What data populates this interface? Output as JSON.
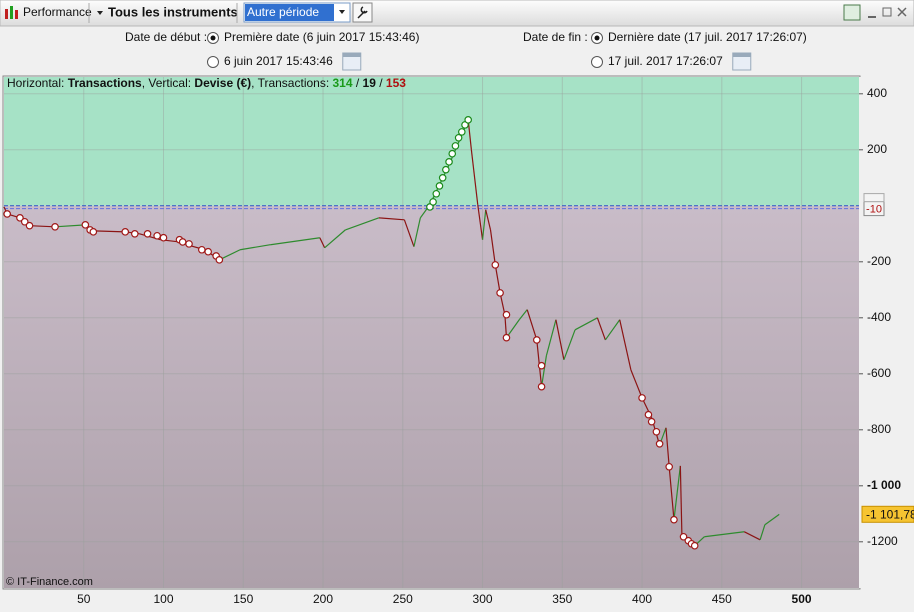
{
  "toolbar": {
    "module": "Performance",
    "instruments": "Tous les instruments",
    "period": "Autre période"
  },
  "dates": {
    "start": {
      "label": "Date de début :",
      "options": [
        {
          "label": "Première date (6 juin 2017 15:43:46)",
          "checked": true
        },
        {
          "label": "6 juin 2017 15:43:46",
          "checked": false
        }
      ]
    },
    "end": {
      "label": "Date de fin :",
      "options": [
        {
          "label": "Dernière date (17 juil. 2017 17:26:07)",
          "checked": true
        },
        {
          "label": "17 juil. 2017 17:26:07",
          "checked": false
        }
      ]
    }
  },
  "chart_data": {
    "type": "line",
    "header": {
      "horizontal": "Horizontal: ",
      "x_name": "Transactions",
      "vertical": ", Vertical: ",
      "y_name": "Devise (€)",
      "count_label": ", Transactions: ",
      "separator": " / ",
      "winning": 314,
      "neutral": 19,
      "losing": 153,
      "winning_color": "#1a9a1a",
      "losing_color": "#b01010"
    },
    "x": [
      0,
      2,
      10,
      16,
      32,
      51,
      54,
      76,
      85,
      98,
      110,
      117,
      126,
      135,
      148,
      167,
      198,
      201,
      214,
      235,
      251,
      257,
      261,
      267,
      279,
      291,
      293,
      297,
      300,
      302,
      305,
      308,
      311,
      314,
      315,
      323,
      328,
      334,
      337,
      340,
      346,
      351,
      358,
      372,
      377,
      386,
      393,
      400,
      406,
      411,
      415,
      417,
      420,
      424,
      425,
      433,
      439,
      464,
      474,
      477,
      486
    ],
    "values": [
      -4,
      -29,
      -43,
      -71,
      -75,
      -68,
      -89,
      -93,
      -100,
      -121,
      -129,
      -143,
      -157,
      -193,
      -157,
      -139,
      -114,
      -150,
      -86,
      -43,
      -50,
      -146,
      -43,
      4,
      146,
      307,
      200,
      4,
      -121,
      -14,
      -86,
      -211,
      -311,
      -389,
      -471,
      -407,
      -371,
      -479,
      -646,
      -536,
      -407,
      -550,
      -443,
      -400,
      -479,
      -407,
      -586,
      -686,
      -757,
      -854,
      -793,
      -932,
      -1121,
      -929,
      -1182,
      -1214,
      -1182,
      -1164,
      -1193,
      -1139,
      -1102
    ],
    "up_color": "#2e8b2e",
    "down_color": "#8b1414",
    "loss_markers": {
      "color": "#a01818",
      "x": [
        2,
        10,
        13,
        16,
        32,
        51,
        54,
        56,
        76,
        82,
        90,
        96,
        100,
        110,
        112,
        116,
        124,
        128,
        133,
        135,
        308,
        311,
        315,
        315,
        334,
        337,
        337,
        400,
        404,
        406,
        409,
        411,
        417,
        420,
        426,
        429,
        431,
        433
      ],
      "y": [
        -29,
        -43,
        -57,
        -71,
        -75,
        -68,
        -86,
        -93,
        -93,
        -100,
        -100,
        -107,
        -114,
        -121,
        -129,
        -136,
        -157,
        -164,
        -179,
        -193,
        -211,
        -311,
        -389,
        -471,
        -479,
        -571,
        -646,
        -686,
        -746,
        -771,
        -807,
        -850,
        -932,
        -1121,
        -1182,
        -1196,
        -1207,
        -1214
      ]
    },
    "gain_markers": {
      "color": "#1a8a1a",
      "x": [
        267,
        269,
        271,
        273,
        275,
        277,
        279,
        281,
        283,
        285,
        287,
        289,
        291
      ],
      "y": [
        -4,
        14,
        43,
        71,
        100,
        129,
        157,
        186,
        214,
        243,
        264,
        289,
        307
      ]
    },
    "xlim": [
      0,
      536
    ],
    "ylim": [
      -1365,
      460
    ],
    "xticks": [
      50,
      100,
      150,
      200,
      250,
      300,
      350,
      400,
      450,
      500
    ],
    "yticks": [
      400,
      200,
      -200,
      -400,
      -600,
      -800,
      {
        "value": -1000,
        "label": "-1 000"
      },
      -1200
    ],
    "zero_line": 0,
    "reference_line": -10,
    "current": {
      "value": -1101.78,
      "label": "-1 101,78"
    },
    "gain_zone_color": "#a6e2c6",
    "loss_zone_color": "#c4b6c2",
    "grid": true,
    "copyright": "© IT-Finance.com"
  }
}
